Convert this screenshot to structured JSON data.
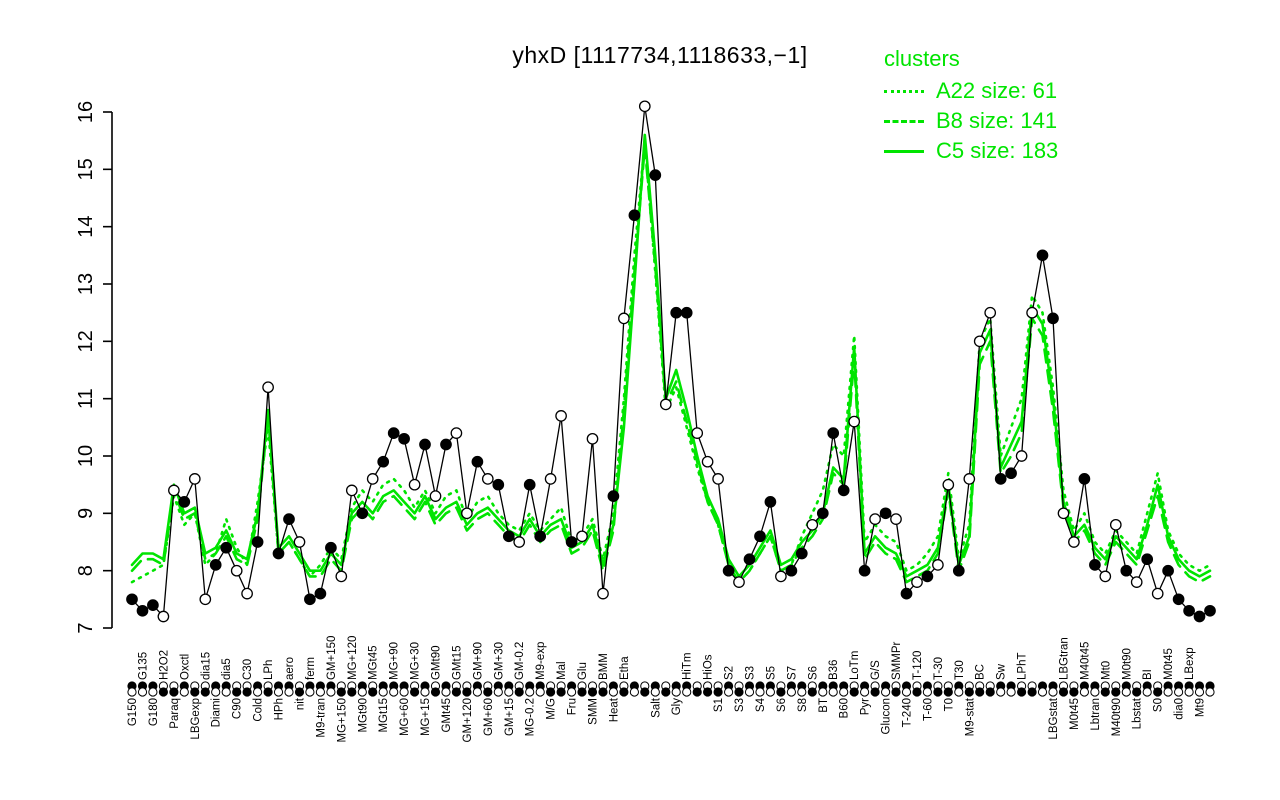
{
  "title": "yhxD [1117734,1118633,−1]",
  "legend": {
    "title": "clusters",
    "color": "#00e400",
    "entries": [
      {
        "name": "A22",
        "label": "A22 size: 61",
        "style": "dotted"
      },
      {
        "name": "B8",
        "label": "B8 size: 141",
        "style": "dashed"
      },
      {
        "name": "C5",
        "label": "C5 size: 183",
        "style": "solid"
      }
    ]
  },
  "chart_data": {
    "type": "line",
    "title": "yhxD [1117734,1118633,−1]",
    "ylabel": "",
    "xlabel": "",
    "ylim": [
      7,
      16
    ],
    "yticks": [
      7,
      8,
      9,
      10,
      11,
      12,
      13,
      14,
      15,
      16
    ],
    "legend_position": "top-right",
    "grid": false,
    "categories": [
      "G150",
      "G135",
      "G180",
      "H2O2",
      "Paraq",
      "Oxctl",
      "LBGexp",
      "dia15",
      "Diami",
      "dia5",
      "C90",
      "C30",
      "Cold",
      "LPh",
      "HPh",
      "aero",
      "nit",
      "ferm",
      "M9-tran",
      "GM+150",
      "MG+150",
      "MG+120",
      "MGt90",
      "MGt45",
      "MGt15",
      "MG+90",
      "MG+60",
      "MG+30",
      "MG+15",
      "GMt90",
      "GMt45",
      "GMt15",
      "GM+120",
      "GM+90",
      "GM+60",
      "GM+30",
      "GM+15",
      "GM-0.2",
      "MG-0.2",
      "M9-exp",
      "M/G",
      "Mal",
      "Fru",
      "Glu",
      "SMM",
      "BMM",
      "Heat",
      "Etha",
      "",
      "",
      "Salt",
      "",
      "Gly",
      "HiTm",
      "",
      "HiOs",
      "S1",
      "S2",
      "S3",
      "S3",
      "S4",
      "S5",
      "S6",
      "S7",
      "S8",
      "S6",
      "BT",
      "B36",
      "B60",
      "LoTm",
      "Pyr",
      "G/S",
      "Glucon",
      "SMMPr",
      "T-240",
      "T-120",
      "T-60",
      "T-30",
      "T0",
      "T30",
      "M9-stat",
      "BC",
      "",
      "Sw",
      "",
      "LPhT",
      "",
      "",
      "LBGstat",
      "LBGtran",
      "M0t45",
      "M40t45",
      "Lbtran",
      "Mt0",
      "M40t90",
      "M0t90",
      "Lbstat",
      "BI",
      "S0",
      "M0t45",
      "dia0",
      "LBexp",
      "Mt9",
      ""
    ],
    "series": [
      {
        "name": "A22",
        "color": "#00e400",
        "dash": "dotted",
        "points": false,
        "values": [
          7.8,
          7.9,
          8.0,
          8.1,
          9.3,
          8.8,
          9.0,
          8.1,
          8.3,
          8.9,
          8.4,
          8.1,
          9.2,
          10.5,
          8.3,
          8.5,
          8.2,
          7.9,
          8.1,
          8.4,
          8.2,
          9.1,
          9.4,
          9.2,
          9.5,
          9.6,
          9.4,
          9.1,
          9.4,
          9.0,
          9.3,
          9.4,
          8.9,
          9.2,
          9.3,
          9.0,
          8.8,
          8.7,
          9.0,
          8.7,
          8.9,
          9.1,
          8.5,
          8.6,
          8.9,
          8.2,
          9.0,
          11.0,
          13.5,
          15.5,
          13.2,
          10.8,
          11.2,
          10.5,
          9.8,
          9.2,
          8.8,
          8.1,
          7.8,
          8.0,
          8.3,
          8.6,
          8.0,
          8.1,
          8.6,
          9.0,
          9.4,
          10.2,
          10.0,
          12.1,
          8.5,
          8.8,
          8.6,
          8.5,
          8.0,
          8.1,
          8.3,
          8.6,
          9.7,
          8.2,
          8.8,
          12.0,
          12.4,
          10.0,
          10.5,
          11.0,
          12.8,
          12.5,
          11.2,
          9.4,
          8.7,
          9.0,
          8.5,
          8.3,
          8.7,
          8.5,
          8.3,
          9.0,
          9.7,
          8.7,
          8.3,
          8.1,
          8.0,
          8.1
        ]
      },
      {
        "name": "B8",
        "color": "#00e400",
        "dash": "dashed",
        "points": false,
        "values": [
          8.0,
          8.2,
          8.2,
          8.1,
          9.4,
          8.9,
          9.0,
          8.2,
          8.3,
          8.6,
          8.2,
          8.1,
          8.9,
          10.7,
          8.3,
          8.5,
          8.2,
          7.9,
          7.9,
          8.2,
          8.0,
          8.9,
          9.1,
          8.9,
          9.2,
          9.3,
          9.1,
          8.9,
          9.2,
          8.8,
          9.0,
          9.1,
          8.7,
          8.9,
          9.0,
          8.8,
          8.6,
          8.5,
          8.8,
          8.5,
          8.7,
          8.8,
          8.3,
          8.4,
          8.7,
          8.0,
          8.7,
          10.8,
          13.2,
          15.4,
          13.3,
          10.9,
          11.3,
          10.6,
          9.9,
          9.2,
          8.8,
          8.1,
          7.8,
          8.0,
          8.3,
          8.6,
          8.0,
          8.1,
          8.4,
          8.6,
          8.9,
          9.7,
          9.5,
          11.7,
          8.2,
          8.5,
          8.3,
          8.2,
          7.8,
          7.9,
          8.0,
          8.3,
          9.4,
          8.0,
          8.5,
          11.6,
          12.0,
          9.7,
          10.0,
          10.4,
          12.4,
          12.1,
          10.8,
          9.1,
          8.5,
          8.7,
          8.3,
          8.1,
          8.5,
          8.3,
          8.1,
          8.7,
          9.3,
          8.5,
          8.1,
          7.9,
          7.8,
          7.9
        ]
      },
      {
        "name": "C5",
        "color": "#00e400",
        "dash": "solid",
        "points": false,
        "values": [
          8.1,
          8.3,
          8.3,
          8.2,
          9.5,
          9.0,
          9.1,
          8.3,
          8.4,
          8.7,
          8.3,
          8.2,
          9.0,
          10.8,
          8.4,
          8.6,
          8.3,
          8.0,
          8.0,
          8.3,
          8.1,
          9.0,
          9.2,
          9.0,
          9.3,
          9.4,
          9.2,
          9.0,
          9.3,
          8.9,
          9.1,
          9.2,
          8.8,
          9.0,
          9.1,
          8.9,
          8.7,
          8.6,
          8.9,
          8.6,
          8.8,
          8.9,
          8.4,
          8.5,
          8.8,
          8.1,
          8.8,
          10.5,
          13.0,
          15.6,
          13.5,
          11.0,
          11.5,
          10.8,
          10.0,
          9.3,
          8.9,
          8.2,
          7.9,
          8.1,
          8.4,
          8.7,
          8.1,
          8.2,
          8.5,
          8.7,
          9.0,
          9.8,
          9.6,
          11.9,
          8.3,
          8.6,
          8.4,
          8.3,
          7.9,
          8.0,
          8.1,
          8.4,
          9.5,
          8.1,
          8.6,
          11.8,
          12.2,
          9.8,
          10.2,
          10.6,
          12.6,
          12.3,
          11.0,
          9.2,
          8.6,
          8.8,
          8.4,
          8.2,
          8.6,
          8.4,
          8.2,
          8.8,
          9.5,
          8.6,
          8.2,
          8.0,
          7.9,
          8.0
        ]
      },
      {
        "name": "profile",
        "color": "#000000",
        "dash": "solid",
        "points": true,
        "values": [
          7.5,
          7.3,
          7.4,
          7.2,
          9.4,
          9.2,
          9.6,
          7.5,
          8.1,
          8.4,
          8.0,
          7.6,
          8.5,
          11.2,
          8.3,
          8.9,
          8.5,
          7.5,
          7.6,
          8.4,
          7.9,
          9.4,
          9.0,
          9.6,
          9.9,
          10.4,
          10.3,
          9.5,
          10.2,
          9.3,
          10.2,
          10.4,
          9.0,
          9.9,
          9.6,
          9.5,
          8.6,
          8.5,
          9.5,
          8.6,
          9.6,
          10.7,
          8.5,
          8.6,
          10.3,
          7.6,
          9.3,
          12.4,
          14.2,
          16.1,
          14.9,
          10.9,
          12.5,
          12.5,
          10.4,
          9.9,
          9.6,
          8.0,
          7.8,
          8.2,
          8.6,
          9.2,
          7.9,
          8.0,
          8.3,
          8.8,
          9.0,
          10.4,
          9.4,
          10.6,
          8.0,
          8.9,
          9.0,
          8.9,
          7.6,
          7.8,
          7.9,
          8.1,
          9.5,
          8.0,
          9.6,
          12.0,
          12.5,
          9.6,
          9.7,
          10.0,
          12.5,
          13.5,
          12.4,
          9.0,
          8.5,
          9.6,
          8.1,
          7.9,
          8.8,
          8.0,
          7.8,
          8.2,
          7.6,
          8.0,
          7.5,
          7.3,
          7.2,
          7.3
        ],
        "point_filled": [
          1,
          1,
          1,
          0,
          0,
          1,
          0,
          0,
          1,
          1,
          0,
          0,
          1,
          0,
          1,
          1,
          0,
          1,
          1,
          1,
          0,
          0,
          1,
          0,
          1,
          1,
          1,
          0,
          1,
          0,
          1,
          0,
          0,
          1,
          0,
          1,
          1,
          0,
          1,
          1,
          0,
          0,
          1,
          0,
          0,
          0,
          1,
          0,
          1,
          0,
          1,
          0,
          1,
          1,
          0,
          0,
          0,
          1,
          0,
          1,
          1,
          1,
          0,
          1,
          1,
          0,
          1,
          1,
          1,
          0,
          1,
          0,
          1,
          0,
          1,
          0,
          1,
          0,
          0,
          1,
          0,
          0,
          0,
          1,
          1,
          0,
          0,
          1,
          1,
          0,
          0,
          1,
          1,
          0,
          0,
          1,
          0,
          1,
          0,
          1,
          1,
          1,
          1,
          1
        ]
      }
    ]
  }
}
